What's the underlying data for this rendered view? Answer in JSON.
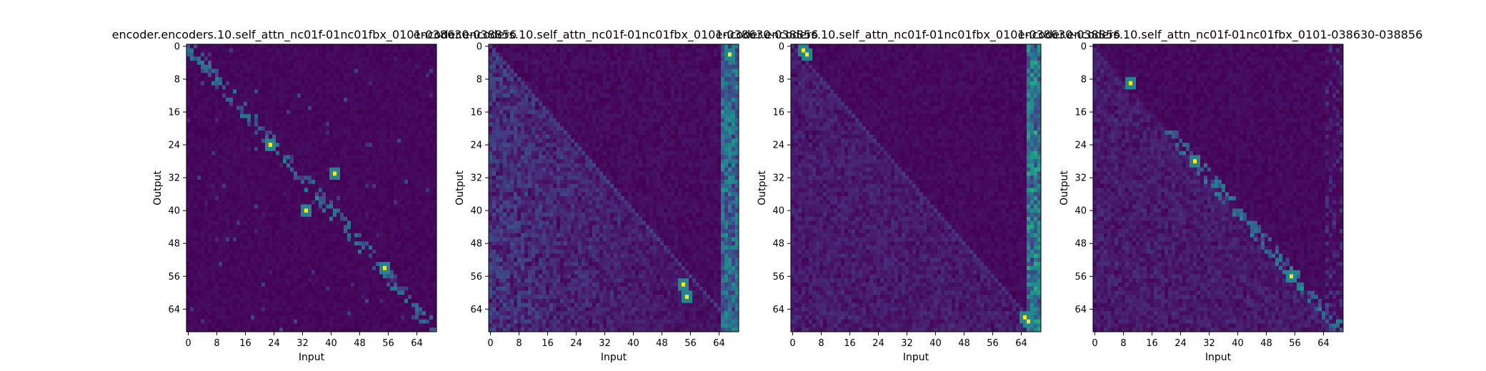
{
  "chart_data": [
    {
      "type": "heatmap",
      "title": "encoder.encoders.10.self_attn_nc01f-01nc01fbx_0101-038630-038856",
      "xlabel": "Input",
      "ylabel": "Output",
      "xticks": [
        "0",
        "8",
        "16",
        "24",
        "32",
        "40",
        "48",
        "56",
        "64"
      ],
      "yticks": [
        "0",
        "8",
        "16",
        "24",
        "32",
        "40",
        "48",
        "56",
        "64"
      ],
      "size": 70,
      "colormap": "viridis",
      "pattern": "sparse-diagonal",
      "hotspots": [
        [
          54,
          55
        ],
        [
          24,
          23
        ],
        [
          31,
          41
        ],
        [
          40,
          33
        ]
      ]
    },
    {
      "type": "heatmap",
      "title": "encoder.encoders.10.self_attn_nc01f-01nc01fbx_0101-038630-038856",
      "xlabel": "Input",
      "ylabel": "Output",
      "xticks": [
        "0",
        "8",
        "16",
        "24",
        "32",
        "40",
        "48",
        "56",
        "64"
      ],
      "yticks": [
        "0",
        "8",
        "16",
        "24",
        "32",
        "40",
        "48",
        "56",
        "64"
      ],
      "size": 70,
      "colormap": "viridis",
      "pattern": "diffuse-lower-triangle",
      "hotspots": [
        [
          58,
          54
        ],
        [
          61,
          55
        ],
        [
          2,
          67
        ]
      ]
    },
    {
      "type": "heatmap",
      "title": "encoder.encoders.10.self_attn_nc01f-01nc01fbx_0101-038630-038856",
      "xlabel": "Input",
      "ylabel": "Output",
      "xticks": [
        "0",
        "8",
        "16",
        "24",
        "32",
        "40",
        "48",
        "56",
        "64"
      ],
      "yticks": [
        "0",
        "8",
        "16",
        "24",
        "32",
        "40",
        "48",
        "56",
        "64"
      ],
      "size": 70,
      "colormap": "viridis",
      "pattern": "right-column",
      "hotspots": [
        [
          1,
          3
        ],
        [
          2,
          4
        ],
        [
          67,
          66
        ],
        [
          66,
          65
        ]
      ]
    },
    {
      "type": "heatmap",
      "title": "encoder.encoders.10.self_attn_nc01f-01nc01fbx_0101-038630-038856",
      "xlabel": "Input",
      "ylabel": "Output",
      "xticks": [
        "0",
        "8",
        "16",
        "24",
        "32",
        "40",
        "48",
        "56",
        "64"
      ],
      "yticks": [
        "0",
        "8",
        "16",
        "24",
        "32",
        "40",
        "48",
        "56",
        "64"
      ],
      "size": 70,
      "colormap": "viridis",
      "pattern": "mid-diagonal",
      "hotspots": [
        [
          28,
          28
        ],
        [
          9,
          10
        ],
        [
          56,
          55
        ]
      ]
    }
  ]
}
